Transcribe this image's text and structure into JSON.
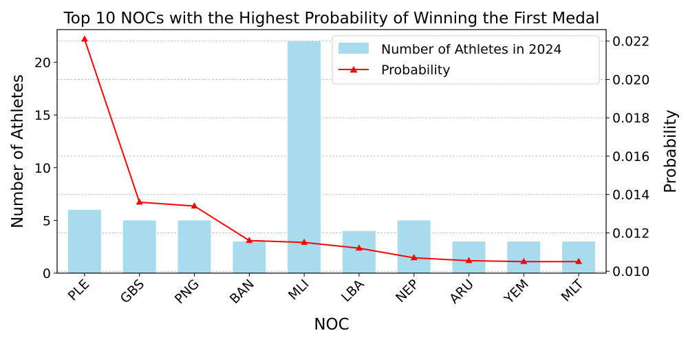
{
  "chart_data": {
    "type": "bar",
    "title": "Top 10 NOCs with the Highest Probability of Winning the First Medal",
    "xlabel": "NOC",
    "ylabel": "Number of Athletes",
    "ylabel_right": "Probability",
    "categories": [
      "PLE",
      "GBS",
      "PNG",
      "BAN",
      "MLI",
      "LBA",
      "NEP",
      "ARU",
      "YEM",
      "MLT"
    ],
    "series": [
      {
        "name": "Number of Athletes in 2024",
        "type": "bar",
        "axis": "left",
        "color": "#a8dbee",
        "values": [
          6,
          5,
          5,
          3,
          22,
          4,
          5,
          3,
          3,
          3
        ]
      },
      {
        "name": "Probability",
        "type": "line",
        "axis": "right",
        "color": "#ff0000",
        "marker": "triangle",
        "values": [
          0.0221,
          0.0136,
          0.0134,
          0.0116,
          0.0115,
          0.0112,
          0.0107,
          0.01055,
          0.0105,
          0.0105
        ]
      }
    ],
    "ylim": [
      0,
      23.1
    ],
    "yticks": [
      0,
      5,
      10,
      15,
      20
    ],
    "ylim_right": [
      0.0099,
      0.0226
    ],
    "yticks_right": [
      "0.010",
      "0.012",
      "0.014",
      "0.016",
      "0.018",
      "0.020",
      "0.022"
    ],
    "grid": "horizontal dashed, right axis",
    "legend": "top-right"
  }
}
